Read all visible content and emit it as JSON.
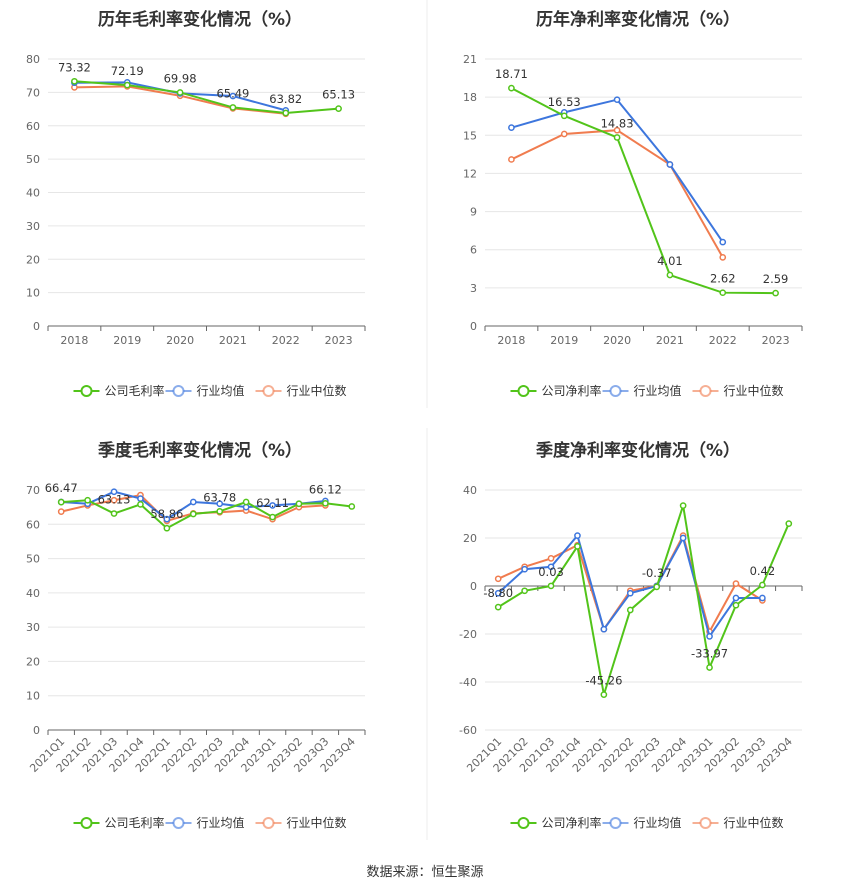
{
  "colors": {
    "company": "#52c41a",
    "avg": "#3d76dd",
    "median": "#f07c4f",
    "grid": "#e6e6e6",
    "axis": "#666666"
  },
  "legend_labels": {
    "gross": [
      "公司毛利率",
      "行业均值",
      "行业中位数"
    ],
    "net": [
      "公司净利率",
      "行业均值",
      "行业中位数"
    ]
  },
  "source": "数据来源：恒生聚源",
  "chart_data": [
    {
      "type": "line",
      "title": "历年毛利率变化情况（%）",
      "categories": [
        "2018",
        "2019",
        "2020",
        "2021",
        "2022",
        "2023"
      ],
      "ylim": [
        0,
        80
      ],
      "yticks": [
        0,
        10,
        20,
        30,
        40,
        50,
        60,
        70,
        80
      ],
      "grid": true,
      "legend": "bottom",
      "series": [
        {
          "name": "公司毛利率",
          "values": [
            73.32,
            72.19,
            69.98,
            65.49,
            63.82,
            65.13
          ]
        },
        {
          "name": "行业均值",
          "values": [
            72.9,
            73.0,
            69.7,
            68.9,
            64.6,
            null
          ]
        },
        {
          "name": "行业中位数",
          "values": [
            71.5,
            71.8,
            69.0,
            65.2,
            63.6,
            null
          ]
        }
      ],
      "data_labels": [
        "73.32",
        "72.19",
        "69.98",
        "65.49",
        "63.82",
        "65.13"
      ]
    },
    {
      "type": "line",
      "title": "历年净利率变化情况（%）",
      "categories": [
        "2018",
        "2019",
        "2020",
        "2021",
        "2022",
        "2023"
      ],
      "ylim": [
        0,
        21
      ],
      "yticks": [
        0,
        3,
        6,
        9,
        12,
        15,
        18,
        21
      ],
      "grid": true,
      "legend": "bottom",
      "series": [
        {
          "name": "公司净利率",
          "values": [
            18.71,
            16.53,
            14.83,
            4.01,
            2.62,
            2.59
          ]
        },
        {
          "name": "行业均值",
          "values": [
            15.6,
            16.8,
            17.8,
            12.7,
            6.6,
            null
          ]
        },
        {
          "name": "行业中位数",
          "values": [
            13.1,
            15.1,
            15.4,
            12.7,
            5.4,
            null
          ]
        }
      ],
      "data_labels": [
        "18.71",
        "16.53",
        "14.83",
        "4.01",
        "2.62",
        "2.59"
      ]
    },
    {
      "type": "line",
      "title": "季度毛利率变化情况（%）",
      "categories": [
        "2021Q1",
        "2021Q2",
        "2021Q3",
        "2021Q4",
        "2022Q1",
        "2022Q2",
        "2022Q3",
        "2022Q4",
        "2023Q1",
        "2023Q2",
        "2023Q3",
        "2023Q4"
      ],
      "ylim": [
        0,
        70
      ],
      "yticks": [
        0,
        10,
        20,
        30,
        40,
        50,
        60,
        70
      ],
      "grid": true,
      "legend": "bottom",
      "series": [
        {
          "name": "公司毛利率",
          "values": [
            66.47,
            67.0,
            63.13,
            65.8,
            58.86,
            63.0,
            63.78,
            66.5,
            62.11,
            66.0,
            66.12,
            65.2
          ]
        },
        {
          "name": "行业均值",
          "values": [
            66.5,
            66.0,
            69.5,
            67.5,
            61.5,
            66.5,
            66.0,
            65.0,
            65.5,
            66.0,
            66.8,
            null
          ]
        },
        {
          "name": "行业中位数",
          "values": [
            63.7,
            65.5,
            67.0,
            68.5,
            61.0,
            63.2,
            63.5,
            64.0,
            61.5,
            65.0,
            65.5,
            null
          ]
        }
      ],
      "data_labels": [
        "66.47",
        "",
        "63.13",
        "",
        "58.86",
        "",
        "63.78",
        "",
        "62.11",
        "",
        "66.12",
        ""
      ]
    },
    {
      "type": "line",
      "title": "季度净利率变化情况（%）",
      "categories": [
        "2021Q1",
        "2021Q2",
        "2021Q3",
        "2021Q4",
        "2022Q1",
        "2022Q2",
        "2022Q3",
        "2022Q4",
        "2023Q1",
        "2023Q2",
        "2023Q3",
        "2023Q4"
      ],
      "ylim": [
        -60,
        40
      ],
      "yticks": [
        -60,
        -40,
        -20,
        0,
        20,
        40
      ],
      "grid": true,
      "legend": "bottom",
      "series": [
        {
          "name": "公司净利率",
          "values": [
            -8.8,
            -2.0,
            0.03,
            16.5,
            -45.26,
            -10.0,
            -0.37,
            33.5,
            -33.97,
            -8.0,
            0.42,
            26.0
          ]
        },
        {
          "name": "行业均值",
          "values": [
            -3.0,
            7.0,
            8.0,
            21.0,
            -18.0,
            -3.0,
            0.0,
            20.0,
            -21.0,
            -5.0,
            -5.0,
            null
          ]
        },
        {
          "name": "行业中位数",
          "values": [
            3.0,
            8.0,
            11.5,
            17.0,
            -18.0,
            -2.0,
            0.0,
            21.0,
            -19.0,
            1.0,
            -6.0,
            null
          ]
        }
      ],
      "data_labels": [
        "-8.80",
        "",
        "0.03",
        "",
        "-45.26",
        "",
        "-0.37",
        "",
        "-33.97",
        "",
        "0.42",
        ""
      ]
    }
  ]
}
